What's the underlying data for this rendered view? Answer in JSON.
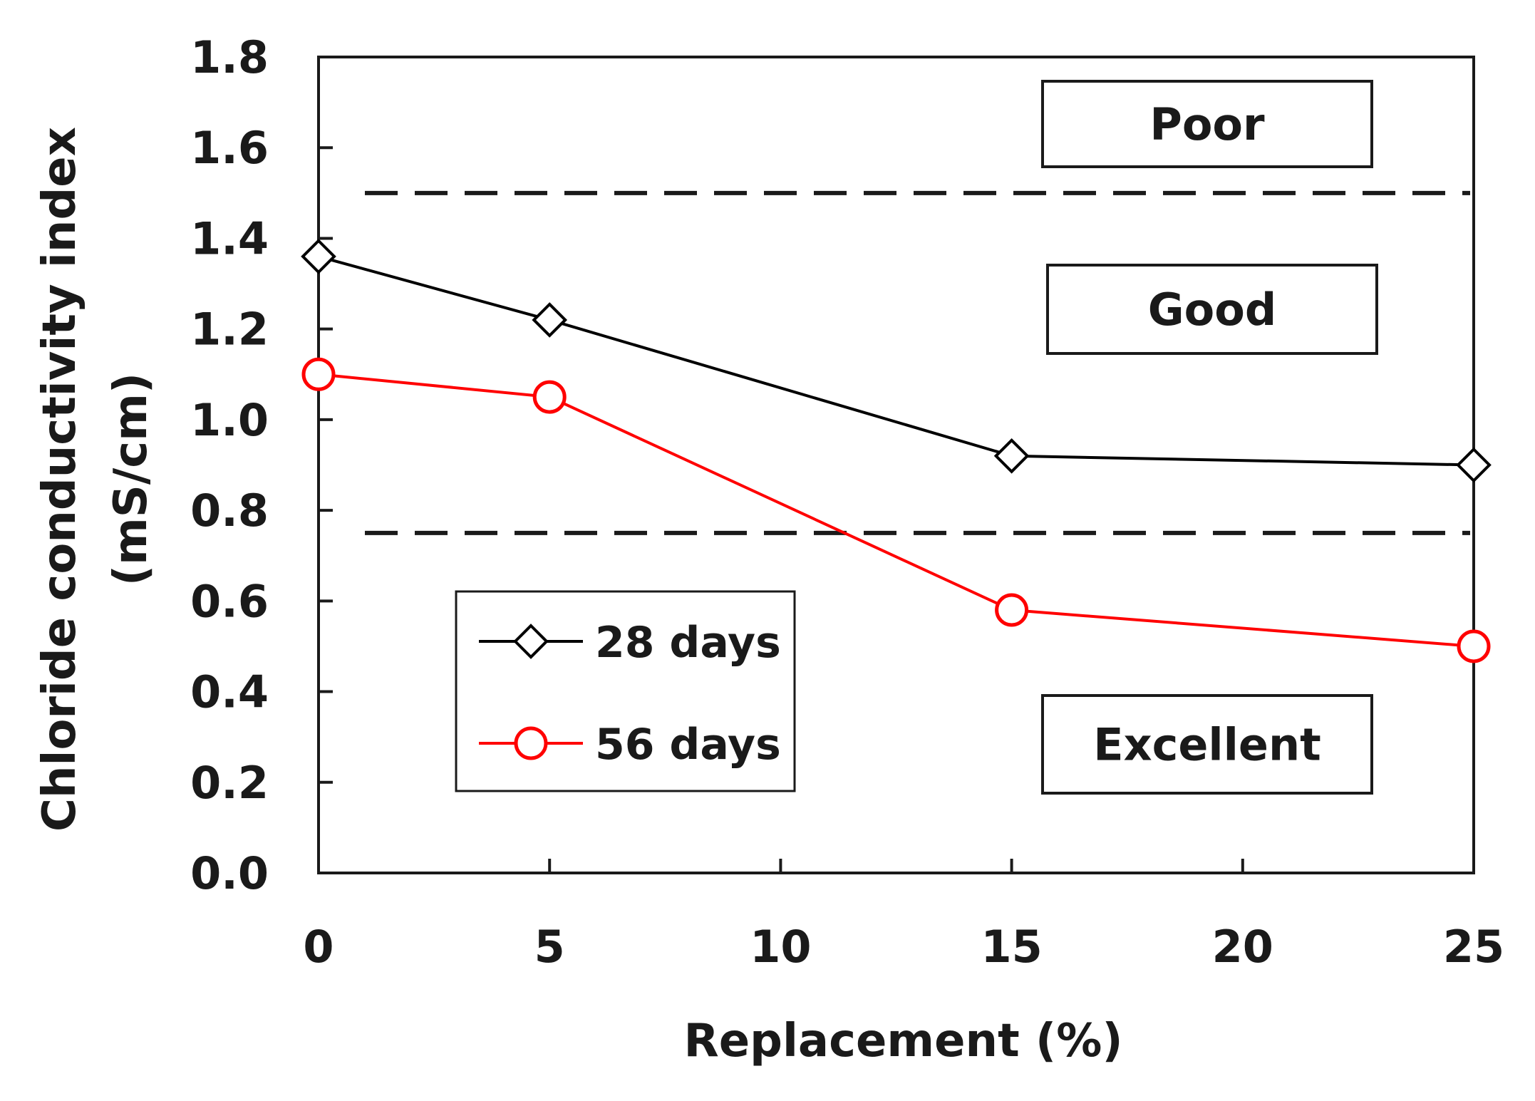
{
  "chart_data": {
    "type": "line",
    "xlabel": "Replacement (%)",
    "ylabel_line1": "Chloride conductivity index",
    "ylabel_line2": "(mS/cm)",
    "xlim": [
      0,
      25
    ],
    "ylim": [
      0,
      1.8
    ],
    "x_ticks": [
      0,
      5,
      10,
      15,
      20,
      25
    ],
    "x_tick_labels": [
      "0",
      "5",
      "10",
      "15",
      "20",
      "25"
    ],
    "y_ticks": [
      0,
      0.2,
      0.4,
      0.6,
      0.8,
      1.0,
      1.2,
      1.4,
      1.6,
      1.8
    ],
    "y_tick_labels": [
      "0.0",
      "0.2",
      "0.4",
      "0.6",
      "0.8",
      "1.0",
      "1.2",
      "1.4",
      "1.6",
      "1.8"
    ],
    "grid": false,
    "series": [
      {
        "name": "28 days",
        "marker": "diamond",
        "color": "#000000",
        "x": [
          0,
          5,
          15,
          25
        ],
        "values": [
          1.36,
          1.22,
          0.92,
          0.9
        ]
      },
      {
        "name": "56 days",
        "marker": "circle",
        "color": "#ff0000",
        "x": [
          0,
          5,
          15,
          25
        ],
        "values": [
          1.1,
          1.05,
          0.58,
          0.5
        ]
      }
    ],
    "thresholds": [
      {
        "value": 1.5,
        "style": "dashed"
      },
      {
        "value": 0.75,
        "style": "dashed"
      }
    ],
    "zones": [
      {
        "label": "Poor"
      },
      {
        "label": "Good"
      },
      {
        "label": "Excellent"
      }
    ],
    "legend_position": "lower-left"
  }
}
